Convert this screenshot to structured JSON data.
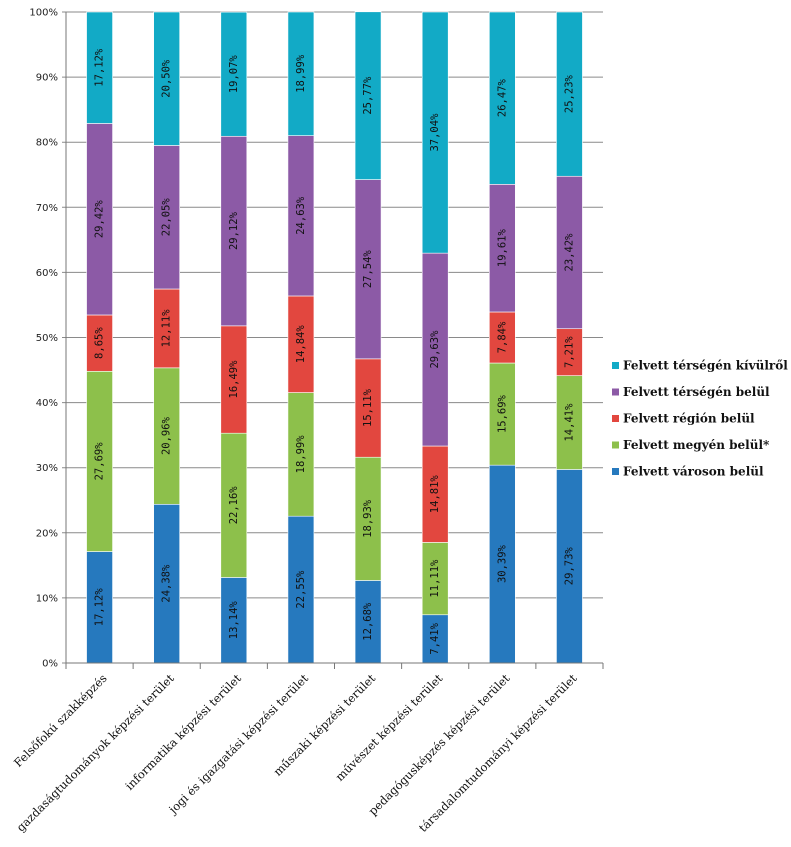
{
  "chart_data": {
    "type": "bar",
    "stacked": true,
    "percent": true,
    "categories": [
      "Felsőfokú szakképzés",
      "gazdaságtudományok képzési terület",
      "informatika képzési terület",
      "jogi és igazgatási képzési terület",
      "műszaki képzési terület",
      "művészet képzési terület",
      "pedagógusképzés képzési terület",
      "társadalomtudományi képzési terület"
    ],
    "series": [
      {
        "name": "Felvett városon belül",
        "color": "#2679be",
        "values": [
          17.12,
          24.38,
          13.14,
          22.55,
          12.68,
          7.41,
          30.39,
          29.73
        ],
        "labels": [
          "17,12%",
          "24,38%",
          "13,14%",
          "22,55%",
          "12,68%",
          "7,41%",
          "30,39%",
          "29,73%"
        ]
      },
      {
        "name": "Felvett megyén belül*",
        "color": "#8dc04b",
        "values": [
          27.69,
          20.96,
          22.16,
          18.99,
          18.93,
          11.11,
          15.69,
          14.41
        ],
        "labels": [
          "27,69%",
          "20,96%",
          "22,16%",
          "18,99%",
          "18,93%",
          "11,11%",
          "15,69%",
          "14,41%"
        ]
      },
      {
        "name": "Felvett régión belül",
        "color": "#e2473f",
        "values": [
          8.65,
          12.11,
          16.49,
          14.84,
          15.11,
          14.81,
          7.84,
          7.21
        ],
        "labels": [
          "8,65%",
          "12,11%",
          "16,49%",
          "14,84%",
          "15,11%",
          "14,81%",
          "7,84%",
          "7,21%"
        ]
      },
      {
        "name": "Felvett térségén belül",
        "color": "#8c5aa6",
        "values": [
          29.42,
          22.05,
          29.12,
          24.63,
          27.54,
          29.63,
          19.61,
          23.42
        ],
        "labels": [
          "29,42%",
          "22,05%",
          "29,12%",
          "24,63%",
          "27,54%",
          "29,63%",
          "19,61%",
          "23,42%"
        ]
      },
      {
        "name": "Felvett térségén kívülről",
        "color": "#12aac6",
        "values": [
          17.12,
          20.5,
          19.07,
          18.99,
          25.77,
          37.04,
          26.47,
          25.23
        ],
        "labels": [
          "17,12%",
          "20,50%",
          "19,07%",
          "18,99%",
          "25,77%",
          "37,04%",
          "26,47%",
          "25,23%"
        ]
      }
    ],
    "yticks": [
      "0%",
      "10%",
      "20%",
      "30%",
      "40%",
      "50%",
      "60%",
      "70%",
      "80%",
      "90%",
      "100%"
    ],
    "ylim": [
      0,
      100
    ],
    "grid": true,
    "legend_position": "right",
    "legend_order": [
      "Felvett térségén kívülről",
      "Felvett térségén belül",
      "Felvett régión belül",
      "Felvett megyén belül*",
      "Felvett városon belül"
    ],
    "title": "",
    "xlabel": "",
    "ylabel": ""
  }
}
